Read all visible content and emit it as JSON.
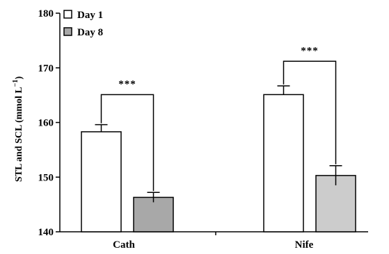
{
  "chart_data": {
    "type": "bar",
    "title": "",
    "xlabel": "",
    "ylabel": "STL and SCL (mmol L",
    "ylabel_sup": "−1",
    "ylabel_close": ")",
    "ylim": [
      140,
      180
    ],
    "yticks": [
      "140",
      "150",
      "160",
      "170",
      "180"
    ],
    "ytick_values": [
      140,
      150,
      160,
      170,
      180
    ],
    "grid": false,
    "legend_position": "top-left",
    "categories": [
      "Cath",
      "Nife"
    ],
    "series": [
      {
        "name": "Day 1",
        "values": [
          158.3,
          165.1
        ],
        "errors": [
          1.3,
          1.6
        ]
      },
      {
        "name": "Day 8",
        "values": [
          146.3,
          150.3
        ],
        "errors": [
          0.9,
          1.8
        ]
      }
    ],
    "annotations": [
      {
        "category": "Cath",
        "text": "***"
      },
      {
        "category": "Nife",
        "text": "***"
      }
    ],
    "colors": {
      "Cath": {
        "Day 1": "#ffffff",
        "Day 8": "#a8a8a8"
      },
      "Nife": {
        "Day 1": "#ffffff",
        "Day 8": "#cccccc"
      },
      "legend": {
        "Day 1": "#ffffff",
        "Day 8": "#a8a8a8"
      }
    }
  }
}
